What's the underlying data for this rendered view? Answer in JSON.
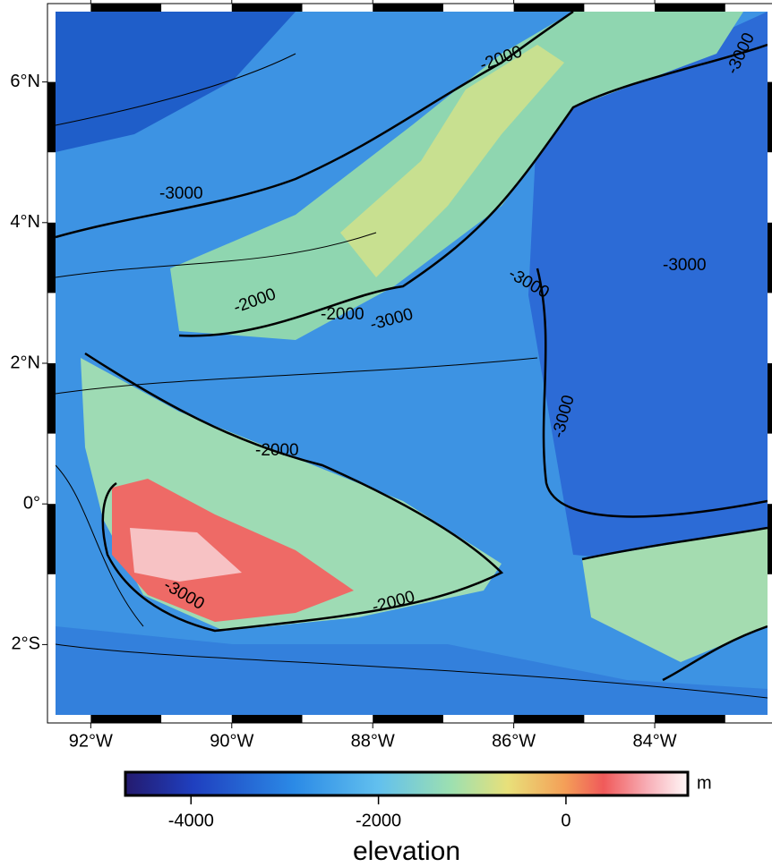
{
  "map": {
    "xlim": [
      -92.5,
      -82.4
    ],
    "ylim": [
      -3,
      7
    ],
    "xticks": [
      {
        "value": -92,
        "label": "92°W"
      },
      {
        "value": -90,
        "label": "90°W"
      },
      {
        "value": -88,
        "label": "88°W"
      },
      {
        "value": -86,
        "label": "86°W"
      },
      {
        "value": -84,
        "label": "84°W"
      }
    ],
    "yticks": [
      {
        "value": -2,
        "label": "2°S"
      },
      {
        "value": 0,
        "label": "0°"
      },
      {
        "value": 2,
        "label": "2°N"
      },
      {
        "value": 4,
        "label": "4°N"
      },
      {
        "value": 6,
        "label": "6°N"
      }
    ],
    "contour_labels": [
      "-2000",
      "-3000",
      "-3000",
      "-2000",
      "-2000",
      "-3000",
      "-3000",
      "-3000",
      "-3000",
      "-2000",
      "-3000",
      "-2000"
    ]
  },
  "colorbar": {
    "label": "elevation",
    "unit": "m",
    "range": [
      -4700,
      1300
    ],
    "ticks": [
      -4000,
      -2000,
      0
    ]
  }
}
